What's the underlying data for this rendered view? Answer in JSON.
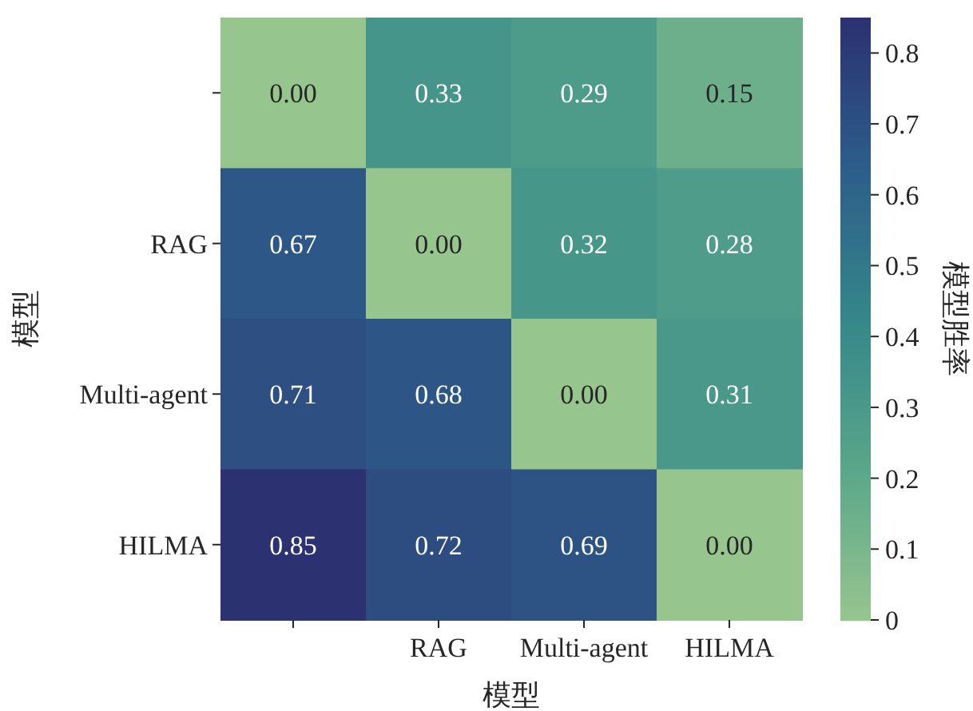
{
  "chart_data": {
    "type": "heatmap",
    "xlabel": "模型",
    "ylabel": "模型",
    "clabel": "模型胜率",
    "categories": [
      null,
      "RAG",
      "Multi-agent",
      "HILMA"
    ],
    "y_categories": [
      null,
      "RAG",
      "Multi-agent",
      "HILMA"
    ],
    "cells": [
      [
        0,
        0.33,
        0.29,
        0.15
      ],
      [
        0.67,
        0,
        0.32,
        0.28
      ],
      [
        0.71,
        0.68,
        0,
        0.31
      ],
      [
        0.85,
        0.72,
        0.69,
        0
      ]
    ],
    "cell_labels": [
      [
        "0.00",
        "0.33",
        "0.29",
        "0.15"
      ],
      [
        "0.67",
        "0.00",
        "0.32",
        "0.28"
      ],
      [
        "0.71",
        "0.68",
        "0.00",
        "0.31"
      ],
      [
        "0.85",
        "0.72",
        "0.69",
        "0.00"
      ]
    ],
    "clim": [
      0,
      0.85
    ],
    "cticks": [
      0,
      0.1,
      0.2,
      0.3,
      0.4,
      0.5,
      0.6,
      0.7,
      0.8
    ]
  }
}
